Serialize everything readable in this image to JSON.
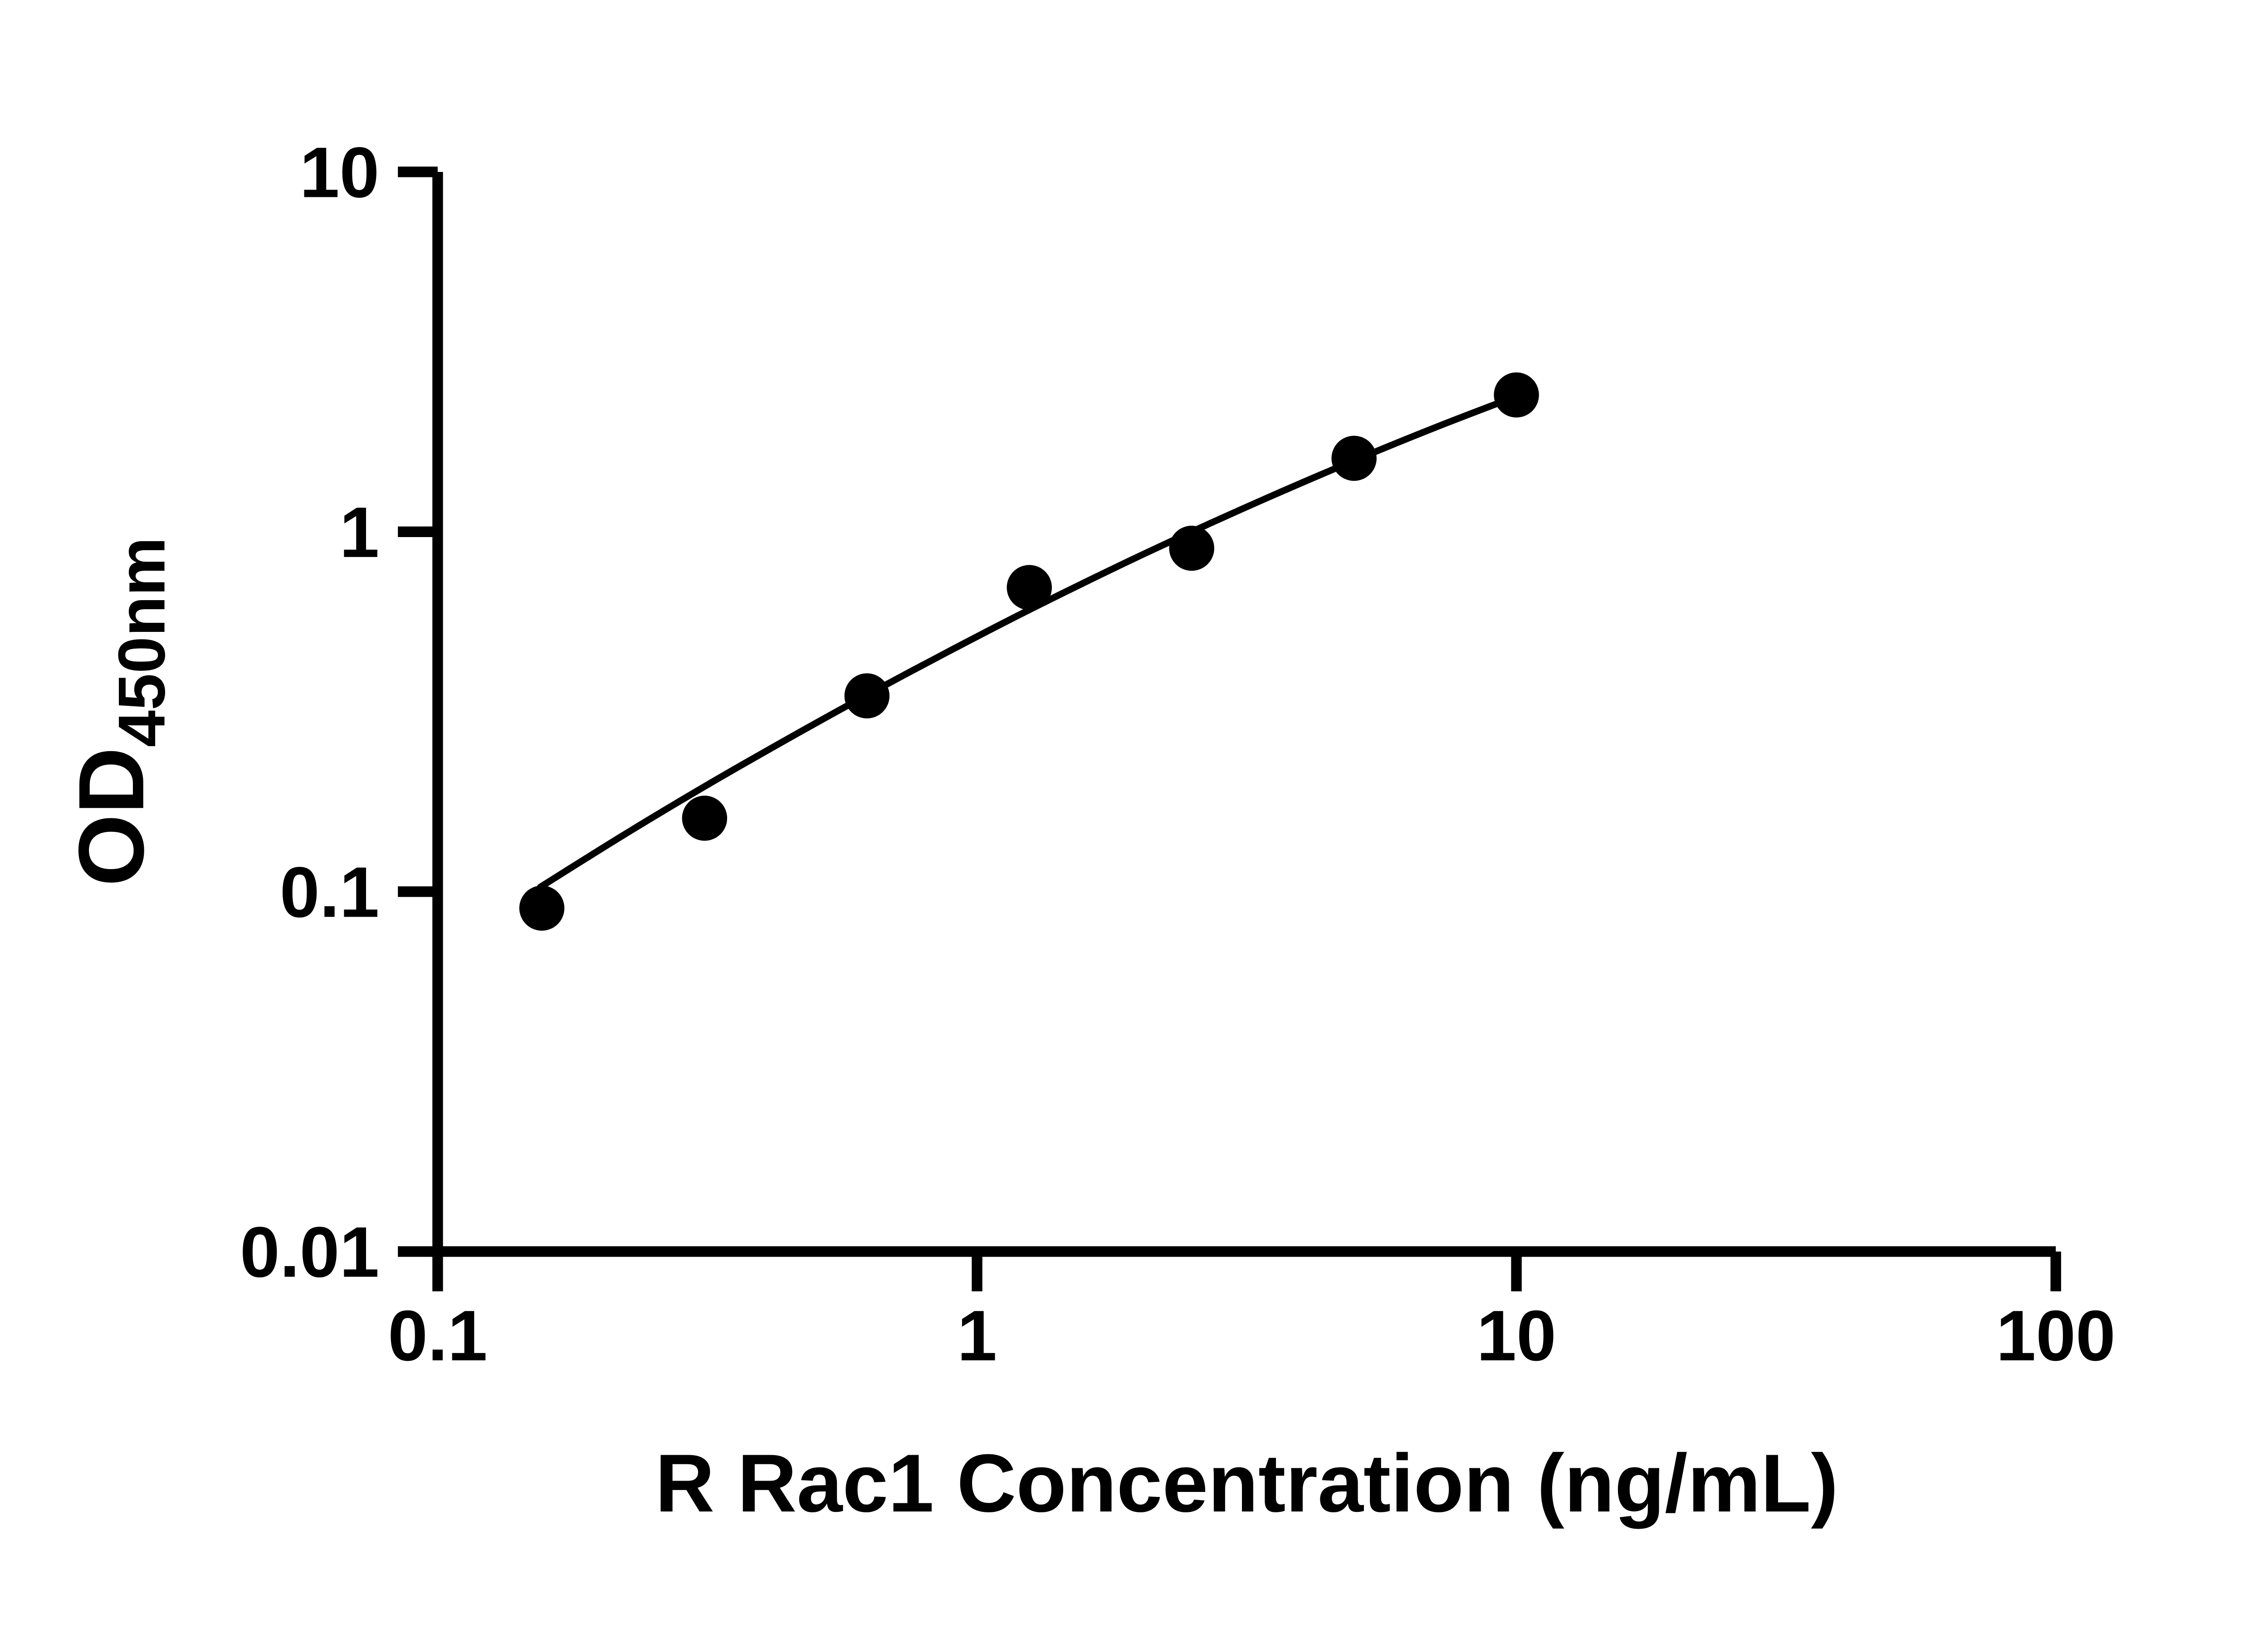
{
  "chart_data": {
    "type": "scatter",
    "title": "",
    "xlabel": "R Rac1 Concentration (ng/mL)",
    "ylabel_main": "OD",
    "ylabel_sub": "450nm",
    "x_scale": "log10",
    "y_scale": "log10",
    "xlim": [
      0.1,
      100
    ],
    "ylim": [
      0.01,
      10
    ],
    "grid": false,
    "legend": "none",
    "x_ticks": [
      {
        "value": 0.1,
        "label": "0.1"
      },
      {
        "value": 1,
        "label": "1"
      },
      {
        "value": 10,
        "label": "10"
      },
      {
        "value": 100,
        "label": "100"
      }
    ],
    "y_ticks": [
      {
        "value": 0.01,
        "label": "0.01"
      },
      {
        "value": 0.1,
        "label": "0.1"
      },
      {
        "value": 1,
        "label": "1"
      },
      {
        "value": 10,
        "label": "10"
      }
    ],
    "series": [
      {
        "name": "standard-curve-points",
        "marker": "circle",
        "marker_radius": 17,
        "color": "#000000",
        "points": [
          {
            "x": 0.156,
            "y": 0.09
          },
          {
            "x": 0.3125,
            "y": 0.16
          },
          {
            "x": 0.625,
            "y": 0.35
          },
          {
            "x": 1.25,
            "y": 0.7
          },
          {
            "x": 2.5,
            "y": 0.9
          },
          {
            "x": 5,
            "y": 1.6
          },
          {
            "x": 10,
            "y": 2.4
          }
        ]
      }
    ],
    "fit_curve": {
      "name": "fitted-curve",
      "color": "#000000",
      "stroke_width": 5,
      "points": [
        {
          "x": 0.155,
          "y": 0.103
        },
        {
          "x": 0.22,
          "y": 0.143
        },
        {
          "x": 0.3125,
          "y": 0.196
        },
        {
          "x": 0.45,
          "y": 0.268
        },
        {
          "x": 0.625,
          "y": 0.352
        },
        {
          "x": 0.9,
          "y": 0.471
        },
        {
          "x": 1.25,
          "y": 0.607
        },
        {
          "x": 1.8,
          "y": 0.794
        },
        {
          "x": 2.5,
          "y": 1.0
        },
        {
          "x": 3.5,
          "y": 1.254
        },
        {
          "x": 5.0,
          "y": 1.577
        },
        {
          "x": 7.2,
          "y": 1.97
        },
        {
          "x": 10.2,
          "y": 2.407
        }
      ]
    },
    "colors": {
      "axis": "#000000",
      "background": "#ffffff",
      "marker": "#000000",
      "curve": "#000000",
      "text": "#000000"
    }
  }
}
